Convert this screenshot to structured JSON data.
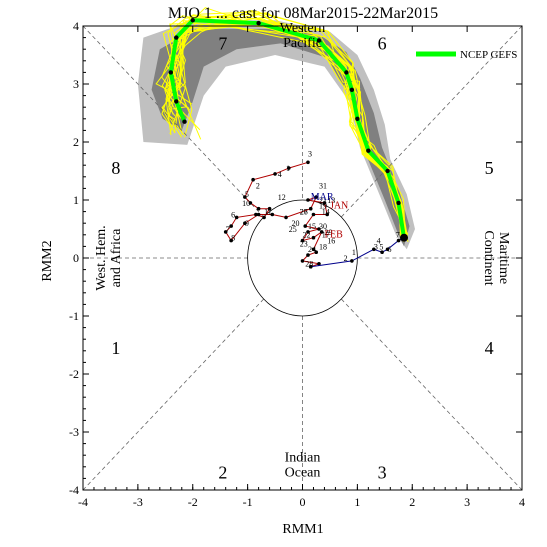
{
  "chart_data": {
    "type": "line",
    "title": "MJO 1  ... cast for 08Mar2015-22Mar2015",
    "xlabel": "RMM1",
    "ylabel": "RMM2",
    "xlim": [
      -4,
      4
    ],
    "ylim": [
      -4,
      4
    ],
    "x_ticks": [
      "-4",
      "-3",
      "-2",
      "-1",
      "0",
      "1",
      "2",
      "3",
      "4"
    ],
    "y_ticks": [
      "-4",
      "-3",
      "-2",
      "-1",
      "0",
      "1",
      "2",
      "3",
      "4"
    ],
    "phase_labels": [
      {
        "text": "1",
        "x": -3.4,
        "y": -1.55
      },
      {
        "text": "2",
        "x": -1.45,
        "y": -3.7
      },
      {
        "text": "3",
        "x": 1.45,
        "y": -3.7
      },
      {
        "text": "4",
        "x": 3.4,
        "y": -1.55
      },
      {
        "text": "5",
        "x": 3.4,
        "y": 1.55
      },
      {
        "text": "6",
        "x": 1.45,
        "y": 3.7
      },
      {
        "text": "7",
        "x": -1.45,
        "y": 3.7
      },
      {
        "text": "8",
        "x": -3.4,
        "y": 1.55
      }
    ],
    "region_labels": [
      {
        "lines": [
          "Indian",
          "Ocean"
        ],
        "x": 0,
        "y": -3.55,
        "rotate": 0
      },
      {
        "lines": [
          "Western",
          "Pacific"
        ],
        "x": 0,
        "y": 3.85,
        "rotate": 0
      },
      {
        "lines": [
          "West. Hem.",
          "and Africa"
        ],
        "x": -3.55,
        "y": 0,
        "rotate": -90
      },
      {
        "lines": [
          "Maritime",
          "Continent"
        ],
        "x": 3.55,
        "y": 0,
        "rotate": 90
      }
    ],
    "legend": {
      "label": "NCEP GEFS",
      "position": "top-right",
      "color": "#00ff00"
    },
    "colors": {
      "ensemble": "#ffff00",
      "mean": "#00ff00",
      "spread_inner": "#808080",
      "spread_outer": "#c0c0c0",
      "observed_feb": "#b00000",
      "observed_mar": "#00008b"
    },
    "spread_outer": [
      [
        1.9,
        0.15
      ],
      [
        2.05,
        0.5
      ],
      [
        1.9,
        1.1
      ],
      [
        1.6,
        1.7
      ],
      [
        1.5,
        2.3
      ],
      [
        1.3,
        2.9
      ],
      [
        1.0,
        3.5
      ],
      [
        0.5,
        3.9
      ],
      [
        -0.5,
        4.1
      ],
      [
        -2.0,
        4.1
      ],
      [
        -2.9,
        3.8
      ],
      [
        -3.0,
        3.0
      ],
      [
        -2.9,
        2.0
      ],
      [
        -2.1,
        1.95
      ],
      [
        -1.8,
        2.8
      ],
      [
        -1.4,
        3.3
      ],
      [
        -0.5,
        3.5
      ],
      [
        0.4,
        3.3
      ],
      [
        0.85,
        2.7
      ],
      [
        1.05,
        1.9
      ],
      [
        1.4,
        1.1
      ],
      [
        1.7,
        0.4
      ]
    ],
    "spread_inner": [
      [
        1.85,
        0.2
      ],
      [
        1.95,
        0.55
      ],
      [
        1.75,
        1.2
      ],
      [
        1.45,
        1.9
      ],
      [
        1.3,
        2.5
      ],
      [
        1.05,
        3.1
      ],
      [
        0.8,
        3.55
      ],
      [
        0.3,
        3.85
      ],
      [
        -0.6,
        3.95
      ],
      [
        -1.95,
        3.95
      ],
      [
        -2.6,
        3.6
      ],
      [
        -2.75,
        2.9
      ],
      [
        -2.55,
        2.4
      ],
      [
        -2.2,
        2.2
      ],
      [
        -2.0,
        2.7
      ],
      [
        -1.8,
        3.3
      ],
      [
        -1.2,
        3.6
      ],
      [
        -0.4,
        3.7
      ],
      [
        0.45,
        3.45
      ],
      [
        0.9,
        2.7
      ],
      [
        1.15,
        1.8
      ],
      [
        1.5,
        1.0
      ],
      [
        1.75,
        0.4
      ]
    ],
    "series": [
      {
        "key": "mean",
        "name": "NCEP GEFS",
        "x": [
          1.85,
          1.75,
          1.55,
          1.2,
          1.0,
          0.9,
          0.8,
          0.3,
          -0.8,
          -2.0,
          -2.3,
          -2.4,
          -2.3,
          -2.15
        ],
        "y": [
          0.35,
          0.95,
          1.5,
          1.85,
          2.4,
          2.9,
          3.2,
          3.75,
          4.05,
          4.1,
          3.8,
          3.2,
          2.7,
          2.35
        ]
      },
      {
        "key": "observed_feb",
        "x": [
          0.1,
          -0.25,
          -0.5,
          -0.9,
          -1.05,
          -0.95,
          -0.8,
          -0.6,
          -0.7,
          -0.85,
          -1.2,
          -1.3,
          -1.4,
          -1.3,
          -1.05,
          -0.8,
          -0.55,
          -0.3,
          0.15,
          0.25,
          0.1,
          0.4,
          0.45,
          0.2,
          0.05,
          0.3,
          0.1,
          0.0,
          0.2,
          0.35,
          0.2,
          0.25,
          0.1,
          0.0,
          0.3,
          0.15
        ],
        "y": [
          1.65,
          1.55,
          1.45,
          1.35,
          1.05,
          0.95,
          0.85,
          0.85,
          0.7,
          0.75,
          0.7,
          0.55,
          0.45,
          0.3,
          0.6,
          0.75,
          0.75,
          0.7,
          0.85,
          1.05,
          1.0,
          0.95,
          0.75,
          0.75,
          0.55,
          0.5,
          0.45,
          0.3,
          0.35,
          0.45,
          0.15,
          0.1,
          0.05,
          -0.05,
          -0.1,
          -0.15
        ]
      },
      {
        "key": "observed_mar",
        "x": [
          0.15,
          0.9,
          1.3,
          1.45,
          1.55,
          1.75,
          1.85
        ],
        "y": [
          -0.15,
          -0.05,
          0.15,
          0.1,
          0.15,
          0.3,
          0.35
        ]
      }
    ],
    "markers": {
      "mean_points": 14,
      "current_point": {
        "x": 1.85,
        "y": 0.35
      }
    },
    "annotations": [
      {
        "text": "1",
        "x": -0.3,
        "y": 1.5
      },
      {
        "text": "2",
        "x": -0.85,
        "y": 1.2
      },
      {
        "text": "3",
        "x": 0.1,
        "y": 1.75
      },
      {
        "text": "4",
        "x": -0.45,
        "y": 1.4
      },
      {
        "text": "5",
        "x": -1.05,
        "y": 1.05
      },
      {
        "text": "6",
        "x": -1.3,
        "y": 0.7
      },
      {
        "text": "7",
        "x": -1.4,
        "y": 0.45
      },
      {
        "text": "8",
        "x": -1.3,
        "y": 0.3
      },
      {
        "text": "9",
        "x": -1.05,
        "y": 0.55
      },
      {
        "text": "10",
        "x": -1.1,
        "y": 0.9
      },
      {
        "text": "11",
        "x": -0.7,
        "y": 0.75
      },
      {
        "text": "12",
        "x": -0.45,
        "y": 1.0
      },
      {
        "text": "13",
        "x": 0.45,
        "y": 0.95
      },
      {
        "text": "14",
        "x": 0.35,
        "y": 0.75
      },
      {
        "text": "15",
        "x": 0.1,
        "y": 0.5
      },
      {
        "text": "16",
        "x": 0.45,
        "y": 0.25
      },
      {
        "text": "17",
        "x": 0.35,
        "y": 0.35
      },
      {
        "text": "18",
        "x": 0.3,
        "y": 0.15
      },
      {
        "text": "19",
        "x": 0.3,
        "y": 0.85
      },
      {
        "text": "20",
        "x": -0.2,
        "y": 0.55
      },
      {
        "text": "21",
        "x": 0.3,
        "y": 0.95
      },
      {
        "text": "22",
        "x": 0.0,
        "y": 0.35
      },
      {
        "text": "23",
        "x": -0.05,
        "y": 0.2
      },
      {
        "text": "24",
        "x": 0.1,
        "y": 0.1
      },
      {
        "text": "25",
        "x": -0.25,
        "y": 0.45
      },
      {
        "text": "26",
        "x": -0.05,
        "y": 0.75
      },
      {
        "text": "27",
        "x": -0.05,
        "y": 0.75
      },
      {
        "text": "28",
        "x": 0.05,
        "y": -0.15
      },
      {
        "text": "29",
        "x": 0.4,
        "y": 0.4
      },
      {
        "text": "30",
        "x": 0.3,
        "y": 0.5
      },
      {
        "text": "31",
        "x": 0.3,
        "y": 1.2
      },
      {
        "text": "1",
        "x": 0.9,
        "y": 0.05
      },
      {
        "text": "2",
        "x": 0.75,
        "y": -0.05
      },
      {
        "text": "3",
        "x": 1.3,
        "y": 0.15
      },
      {
        "text": "4",
        "x": 1.35,
        "y": 0.25
      },
      {
        "text": "5",
        "x": 1.4,
        "y": 0.15
      },
      {
        "text": "6",
        "x": 1.55,
        "y": 0.1
      },
      {
        "text": "7",
        "x": 1.7,
        "y": 0.35
      }
    ],
    "month_labels": [
      {
        "text": "FEB",
        "x": 0.4,
        "y": 0.35,
        "color": "#b00000"
      },
      {
        "text": "MAR",
        "x": 0.15,
        "y": 1.0,
        "color": "#00008b"
      },
      {
        "text": "JAN",
        "x": 0.5,
        "y": 0.85,
        "color": "#b00000"
      }
    ]
  }
}
